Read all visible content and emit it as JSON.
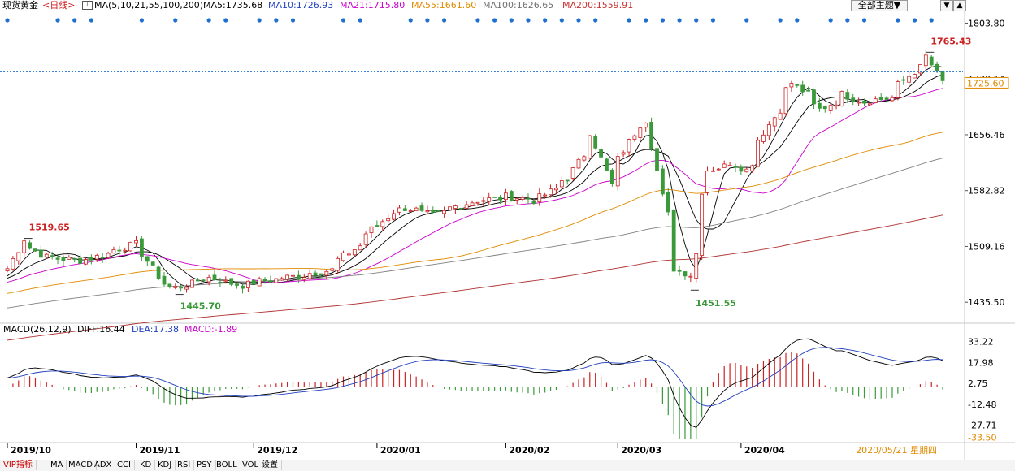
{
  "header": {
    "symbol": "现货黄金",
    "period": "<日线>",
    "ma_label": "MA(5,10,21,55,100,200)",
    "ma_values": [
      {
        "text": "MA5:1735.68",
        "color": "#000000"
      },
      {
        "text": "MA10:1726.93",
        "color": "#1f3fbf"
      },
      {
        "text": "MA21:1715.80",
        "color": "#cc00cc"
      },
      {
        "text": "MA55:1661.60",
        "color": "#e08a00"
      },
      {
        "text": "MA100:1626.65",
        "color": "#707070"
      },
      {
        "text": "MA200:1559.91",
        "color": "#cc3030"
      }
    ],
    "theme_button": "全部主题▼",
    "corner_buttons": [
      "▼",
      "▲"
    ]
  },
  "macd_header": {
    "label": "MACD(26,12,9)",
    "diff": "DIFF:16.44",
    "dea": "DEA:17.38",
    "macd": "MACD:-1.89"
  },
  "axes": {
    "price_ticks": [
      "1803.80",
      "1730.14",
      "1656.46",
      "1582.82",
      "1509.16",
      "1435.50"
    ],
    "current_price": "1725.60",
    "macd_ticks": [
      "33.22",
      "17.98",
      "2.75",
      "-12.48",
      "-27.71",
      "-33.50"
    ],
    "date_ticks": [
      "2019/10",
      "2019/11",
      "2019/12",
      "2020/01",
      "2020/02",
      "2020/03",
      "2020/04"
    ],
    "cursor_date": "2020/05/21 星期四"
  },
  "annotations": [
    "1519.65",
    "1445.70",
    "1451.55",
    "1765.43"
  ],
  "tabs": [
    "VIP指标",
    "MA",
    "MACD",
    "ADX",
    "CCI",
    "KD",
    "KDJ",
    "RSI",
    "PSY",
    "BOLL",
    "VOL",
    "设置"
  ],
  "colors": {
    "up": "#cc2222",
    "down": "#3a9a3a",
    "accent": "#1f3fbf",
    "dots": "#1f6fd0"
  },
  "chart_data": {
    "type": "candlestick",
    "title": "现货黄金 <日线>",
    "y_range": [
      1410,
      1815
    ],
    "macd_range": [
      -38,
      36
    ],
    "ma_series": [
      "MA5",
      "MA10",
      "MA21",
      "MA55",
      "MA100",
      "MA200"
    ],
    "macd_series": [
      "DIFF",
      "DEA",
      "MACD"
    ],
    "close_anchors": [
      {
        "date": "2019/10/01",
        "close": 1480
      },
      {
        "date": "2019/10/03",
        "close": 1505
      },
      {
        "date": "2019/10/04",
        "close": 1519
      },
      {
        "date": "2019/10/10",
        "close": 1495
      },
      {
        "date": "2019/10/20",
        "close": 1490
      },
      {
        "date": "2019/10/28",
        "close": 1505
      },
      {
        "date": "2019/11/01",
        "close": 1512
      },
      {
        "date": "2019/11/04",
        "close": 1500
      },
      {
        "date": "2019/11/08",
        "close": 1460
      },
      {
        "date": "2019/11/12",
        "close": 1455
      },
      {
        "date": "2019/11/20",
        "close": 1468
      },
      {
        "date": "2019/11/28",
        "close": 1458
      },
      {
        "date": "2019/12/05",
        "close": 1465
      },
      {
        "date": "2019/12/12",
        "close": 1470
      },
      {
        "date": "2019/12/20",
        "close": 1478
      },
      {
        "date": "2019/12/27",
        "close": 1510
      },
      {
        "date": "2020/01/03",
        "close": 1548
      },
      {
        "date": "2020/01/08",
        "close": 1560
      },
      {
        "date": "2020/01/15",
        "close": 1550
      },
      {
        "date": "2020/01/24",
        "close": 1568
      },
      {
        "date": "2020/02/03",
        "close": 1575
      },
      {
        "date": "2020/02/10",
        "close": 1570
      },
      {
        "date": "2020/02/18",
        "close": 1600
      },
      {
        "date": "2020/02/24",
        "close": 1660
      },
      {
        "date": "2020/02/28",
        "close": 1590
      },
      {
        "date": "2020/03/06",
        "close": 1670
      },
      {
        "date": "2020/03/09",
        "close": 1676
      },
      {
        "date": "2020/03/12",
        "close": 1575
      },
      {
        "date": "2020/03/16",
        "close": 1480
      },
      {
        "date": "2020/03/19",
        "close": 1472
      },
      {
        "date": "2020/03/24",
        "close": 1610
      },
      {
        "date": "2020/03/30",
        "close": 1620
      },
      {
        "date": "2020/04/02",
        "close": 1610
      },
      {
        "date": "2020/04/06",
        "close": 1650
      },
      {
        "date": "2020/04/10",
        "close": 1690
      },
      {
        "date": "2020/04/14",
        "close": 1725
      },
      {
        "date": "2020/04/21",
        "close": 1690
      },
      {
        "date": "2020/04/27",
        "close": 1710
      },
      {
        "date": "2020/05/01",
        "close": 1700
      },
      {
        "date": "2020/05/08",
        "close": 1705
      },
      {
        "date": "2020/05/14",
        "close": 1740
      },
      {
        "date": "2020/05/18",
        "close": 1760
      },
      {
        "date": "2020/05/21",
        "close": 1726
      }
    ]
  }
}
